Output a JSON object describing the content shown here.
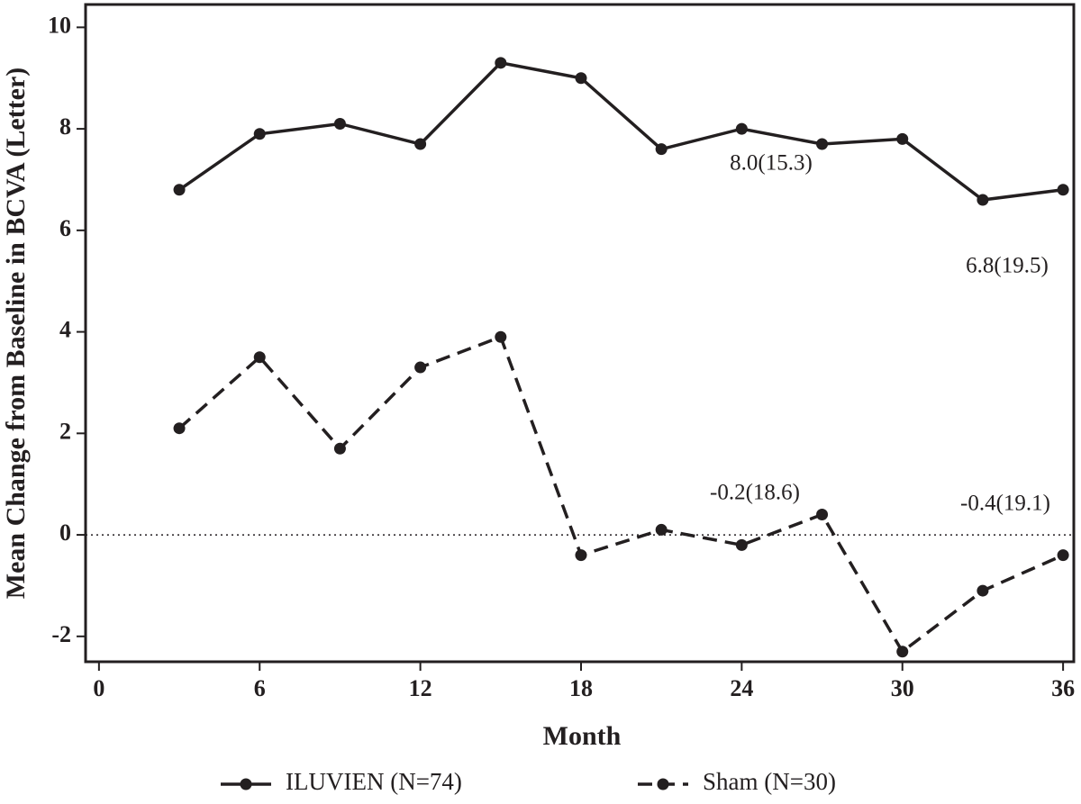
{
  "chart_data": {
    "type": "line",
    "x_label": "Month",
    "y_label": "Mean Change from Baseline in BCVA (Letter)",
    "x": [
      3,
      6,
      9,
      12,
      15,
      18,
      21,
      24,
      27,
      30,
      33,
      36
    ],
    "series": [
      {
        "name": "ILUVIEN (N=74)",
        "color": "#231f20",
        "dash": "solid",
        "values": [
          6.8,
          7.9,
          8.1,
          7.7,
          9.3,
          9.0,
          7.6,
          8.0,
          7.7,
          7.8,
          6.6,
          6.8
        ]
      },
      {
        "name": "Sham (N=30)",
        "color": "#231f20",
        "dash": "dashed",
        "values": [
          2.1,
          3.5,
          1.7,
          3.3,
          3.9,
          -0.4,
          0.1,
          -0.2,
          0.4,
          -2.3,
          -1.1,
          -0.4
        ]
      }
    ],
    "annotations": [
      "8.0(15.3)",
      "6.8(19.5)",
      "-0.2(18.6)",
      "-0.4(19.1)"
    ],
    "reference_line": 0,
    "xlim": [
      -0.5,
      36.4
    ],
    "xticks": [
      0,
      6,
      12,
      18,
      24,
      30,
      36
    ],
    "ylim": [
      -2.5,
      10.45
    ],
    "yticks": [
      -2,
      0,
      2,
      4,
      6,
      8,
      10
    ],
    "legend": "bottom"
  }
}
